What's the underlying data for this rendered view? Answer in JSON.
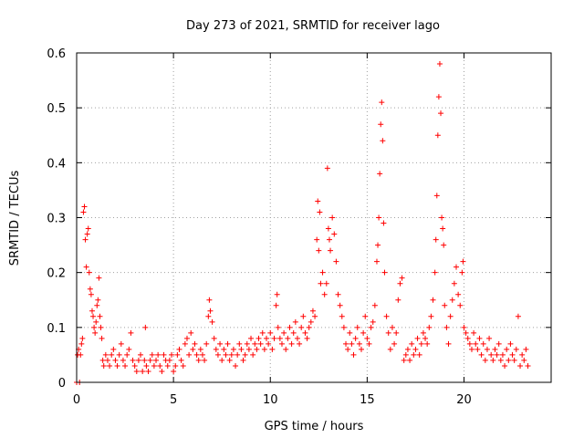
{
  "chart_data": {
    "type": "scatter",
    "title": "Day 273 of 2021, SRMTID for receiver lago",
    "xlabel": "GPS time / hours",
    "ylabel": "SRMTID / TECUs",
    "xlim": [
      0,
      24.5
    ],
    "ylim": [
      0,
      0.6
    ],
    "xticks": [
      0,
      5,
      10,
      15,
      20
    ],
    "yticks": [
      0,
      0.1,
      0.2,
      0.3,
      0.4,
      0.5,
      0.6
    ],
    "xtick_labels": [
      "0",
      "5",
      "10",
      "15",
      "20"
    ],
    "ytick_labels": [
      "0",
      "0.1",
      "0.2",
      "0.3",
      "0.4",
      "0.5",
      "0.6"
    ],
    "grid": true,
    "marker": "+",
    "color": "#ff0000",
    "series": [
      {
        "name": "SRMTID",
        "points": [
          [
            0.0,
            0.0
          ],
          [
            0.05,
            0.05
          ],
          [
            0.1,
            0.06
          ],
          [
            0.15,
            0.0
          ],
          [
            0.2,
            0.05
          ],
          [
            0.25,
            0.07
          ],
          [
            0.3,
            0.08
          ],
          [
            0.35,
            0.31
          ],
          [
            0.4,
            0.32
          ],
          [
            0.45,
            0.26
          ],
          [
            0.5,
            0.21
          ],
          [
            0.55,
            0.27
          ],
          [
            0.6,
            0.28
          ],
          [
            0.65,
            0.2
          ],
          [
            0.7,
            0.17
          ],
          [
            0.75,
            0.16
          ],
          [
            0.8,
            0.13
          ],
          [
            0.85,
            0.12
          ],
          [
            0.9,
            0.1
          ],
          [
            0.95,
            0.09
          ],
          [
            1.0,
            0.11
          ],
          [
            1.05,
            0.14
          ],
          [
            1.1,
            0.15
          ],
          [
            1.15,
            0.19
          ],
          [
            1.2,
            0.12
          ],
          [
            1.25,
            0.1
          ],
          [
            1.3,
            0.08
          ],
          [
            1.35,
            0.04
          ],
          [
            1.4,
            0.03
          ],
          [
            1.5,
            0.05
          ],
          [
            1.6,
            0.04
          ],
          [
            1.7,
            0.03
          ],
          [
            1.8,
            0.05
          ],
          [
            1.9,
            0.06
          ],
          [
            2.0,
            0.04
          ],
          [
            2.1,
            0.03
          ],
          [
            2.2,
            0.05
          ],
          [
            2.3,
            0.07
          ],
          [
            2.4,
            0.04
          ],
          [
            2.5,
            0.03
          ],
          [
            2.6,
            0.05
          ],
          [
            2.7,
            0.06
          ],
          [
            2.8,
            0.09
          ],
          [
            2.9,
            0.04
          ],
          [
            3.0,
            0.03
          ],
          [
            3.1,
            0.02
          ],
          [
            3.2,
            0.04
          ],
          [
            3.3,
            0.05
          ],
          [
            3.4,
            0.02
          ],
          [
            3.5,
            0.04
          ],
          [
            3.55,
            0.1
          ],
          [
            3.6,
            0.03
          ],
          [
            3.7,
            0.02
          ],
          [
            3.8,
            0.04
          ],
          [
            3.9,
            0.05
          ],
          [
            4.0,
            0.03
          ],
          [
            4.1,
            0.04
          ],
          [
            4.2,
            0.05
          ],
          [
            4.3,
            0.03
          ],
          [
            4.4,
            0.02
          ],
          [
            4.5,
            0.05
          ],
          [
            4.6,
            0.04
          ],
          [
            4.7,
            0.03
          ],
          [
            4.8,
            0.04
          ],
          [
            4.9,
            0.05
          ],
          [
            5.0,
            0.02
          ],
          [
            5.1,
            0.03
          ],
          [
            5.2,
            0.05
          ],
          [
            5.3,
            0.06
          ],
          [
            5.4,
            0.04
          ],
          [
            5.5,
            0.03
          ],
          [
            5.6,
            0.07
          ],
          [
            5.7,
            0.08
          ],
          [
            5.8,
            0.05
          ],
          [
            5.9,
            0.09
          ],
          [
            6.0,
            0.06
          ],
          [
            6.1,
            0.07
          ],
          [
            6.2,
            0.05
          ],
          [
            6.3,
            0.04
          ],
          [
            6.4,
            0.06
          ],
          [
            6.5,
            0.05
          ],
          [
            6.6,
            0.04
          ],
          [
            6.7,
            0.07
          ],
          [
            6.8,
            0.12
          ],
          [
            6.85,
            0.15
          ],
          [
            6.9,
            0.13
          ],
          [
            7.0,
            0.11
          ],
          [
            7.1,
            0.08
          ],
          [
            7.2,
            0.06
          ],
          [
            7.3,
            0.05
          ],
          [
            7.4,
            0.07
          ],
          [
            7.5,
            0.04
          ],
          [
            7.6,
            0.06
          ],
          [
            7.7,
            0.05
          ],
          [
            7.8,
            0.07
          ],
          [
            7.9,
            0.04
          ],
          [
            8.0,
            0.05
          ],
          [
            8.1,
            0.06
          ],
          [
            8.2,
            0.03
          ],
          [
            8.3,
            0.05
          ],
          [
            8.4,
            0.07
          ],
          [
            8.5,
            0.06
          ],
          [
            8.6,
            0.04
          ],
          [
            8.7,
            0.05
          ],
          [
            8.8,
            0.07
          ],
          [
            8.9,
            0.06
          ],
          [
            9.0,
            0.08
          ],
          [
            9.1,
            0.05
          ],
          [
            9.2,
            0.07
          ],
          [
            9.3,
            0.06
          ],
          [
            9.4,
            0.08
          ],
          [
            9.5,
            0.07
          ],
          [
            9.6,
            0.09
          ],
          [
            9.7,
            0.06
          ],
          [
            9.8,
            0.08
          ],
          [
            9.9,
            0.07
          ],
          [
            10.0,
            0.09
          ],
          [
            10.1,
            0.06
          ],
          [
            10.2,
            0.08
          ],
          [
            10.3,
            0.14
          ],
          [
            10.35,
            0.16
          ],
          [
            10.4,
            0.1
          ],
          [
            10.5,
            0.08
          ],
          [
            10.6,
            0.07
          ],
          [
            10.7,
            0.09
          ],
          [
            10.8,
            0.06
          ],
          [
            10.9,
            0.08
          ],
          [
            11.0,
            0.1
          ],
          [
            11.1,
            0.07
          ],
          [
            11.2,
            0.09
          ],
          [
            11.3,
            0.11
          ],
          [
            11.4,
            0.08
          ],
          [
            11.5,
            0.07
          ],
          [
            11.6,
            0.1
          ],
          [
            11.7,
            0.12
          ],
          [
            11.8,
            0.09
          ],
          [
            11.9,
            0.08
          ],
          [
            12.0,
            0.1
          ],
          [
            12.1,
            0.11
          ],
          [
            12.2,
            0.13
          ],
          [
            12.3,
            0.12
          ],
          [
            12.4,
            0.26
          ],
          [
            12.45,
            0.33
          ],
          [
            12.5,
            0.24
          ],
          [
            12.55,
            0.31
          ],
          [
            12.6,
            0.18
          ],
          [
            12.7,
            0.2
          ],
          [
            12.8,
            0.16
          ],
          [
            12.9,
            0.18
          ],
          [
            12.95,
            0.39
          ],
          [
            13.0,
            0.28
          ],
          [
            13.05,
            0.26
          ],
          [
            13.1,
            0.24
          ],
          [
            13.2,
            0.3
          ],
          [
            13.3,
            0.27
          ],
          [
            13.4,
            0.22
          ],
          [
            13.5,
            0.16
          ],
          [
            13.6,
            0.14
          ],
          [
            13.7,
            0.12
          ],
          [
            13.8,
            0.1
          ],
          [
            13.9,
            0.07
          ],
          [
            14.0,
            0.06
          ],
          [
            14.1,
            0.09
          ],
          [
            14.2,
            0.07
          ],
          [
            14.3,
            0.05
          ],
          [
            14.4,
            0.08
          ],
          [
            14.5,
            0.1
          ],
          [
            14.6,
            0.07
          ],
          [
            14.7,
            0.06
          ],
          [
            14.8,
            0.09
          ],
          [
            14.9,
            0.12
          ],
          [
            15.0,
            0.08
          ],
          [
            15.1,
            0.07
          ],
          [
            15.2,
            0.1
          ],
          [
            15.3,
            0.11
          ],
          [
            15.4,
            0.14
          ],
          [
            15.5,
            0.22
          ],
          [
            15.55,
            0.25
          ],
          [
            15.6,
            0.3
          ],
          [
            15.65,
            0.38
          ],
          [
            15.7,
            0.47
          ],
          [
            15.75,
            0.51
          ],
          [
            15.8,
            0.44
          ],
          [
            15.85,
            0.29
          ],
          [
            15.9,
            0.2
          ],
          [
            16.0,
            0.12
          ],
          [
            16.1,
            0.09
          ],
          [
            16.2,
            0.06
          ],
          [
            16.3,
            0.1
          ],
          [
            16.4,
            0.07
          ],
          [
            16.5,
            0.09
          ],
          [
            16.6,
            0.15
          ],
          [
            16.7,
            0.18
          ],
          [
            16.8,
            0.19
          ],
          [
            16.9,
            0.04
          ],
          [
            17.0,
            0.05
          ],
          [
            17.1,
            0.06
          ],
          [
            17.2,
            0.04
          ],
          [
            17.3,
            0.07
          ],
          [
            17.4,
            0.05
          ],
          [
            17.5,
            0.06
          ],
          [
            17.6,
            0.08
          ],
          [
            17.7,
            0.05
          ],
          [
            17.8,
            0.07
          ],
          [
            17.9,
            0.09
          ],
          [
            18.0,
            0.08
          ],
          [
            18.1,
            0.07
          ],
          [
            18.2,
            0.1
          ],
          [
            18.3,
            0.12
          ],
          [
            18.4,
            0.15
          ],
          [
            18.5,
            0.2
          ],
          [
            18.55,
            0.26
          ],
          [
            18.6,
            0.34
          ],
          [
            18.65,
            0.45
          ],
          [
            18.7,
            0.52
          ],
          [
            18.75,
            0.58
          ],
          [
            18.8,
            0.49
          ],
          [
            18.85,
            0.3
          ],
          [
            18.9,
            0.28
          ],
          [
            18.95,
            0.25
          ],
          [
            19.0,
            0.14
          ],
          [
            19.1,
            0.1
          ],
          [
            19.2,
            0.07
          ],
          [
            19.3,
            0.12
          ],
          [
            19.4,
            0.15
          ],
          [
            19.5,
            0.18
          ],
          [
            19.6,
            0.21
          ],
          [
            19.7,
            0.16
          ],
          [
            19.8,
            0.14
          ],
          [
            19.9,
            0.2
          ],
          [
            19.95,
            0.22
          ],
          [
            20.0,
            0.1
          ],
          [
            20.1,
            0.09
          ],
          [
            20.2,
            0.08
          ],
          [
            20.3,
            0.07
          ],
          [
            20.4,
            0.06
          ],
          [
            20.5,
            0.09
          ],
          [
            20.6,
            0.07
          ],
          [
            20.7,
            0.06
          ],
          [
            20.8,
            0.08
          ],
          [
            20.9,
            0.05
          ],
          [
            21.0,
            0.07
          ],
          [
            21.1,
            0.04
          ],
          [
            21.2,
            0.06
          ],
          [
            21.3,
            0.08
          ],
          [
            21.4,
            0.05
          ],
          [
            21.5,
            0.04
          ],
          [
            21.6,
            0.06
          ],
          [
            21.7,
            0.05
          ],
          [
            21.8,
            0.07
          ],
          [
            21.9,
            0.04
          ],
          [
            22.0,
            0.05
          ],
          [
            22.1,
            0.03
          ],
          [
            22.2,
            0.06
          ],
          [
            22.3,
            0.04
          ],
          [
            22.4,
            0.07
          ],
          [
            22.5,
            0.05
          ],
          [
            22.6,
            0.04
          ],
          [
            22.7,
            0.06
          ],
          [
            22.8,
            0.12
          ],
          [
            22.9,
            0.03
          ],
          [
            23.0,
            0.05
          ],
          [
            23.1,
            0.04
          ],
          [
            23.2,
            0.06
          ],
          [
            23.3,
            0.03
          ]
        ]
      }
    ]
  }
}
